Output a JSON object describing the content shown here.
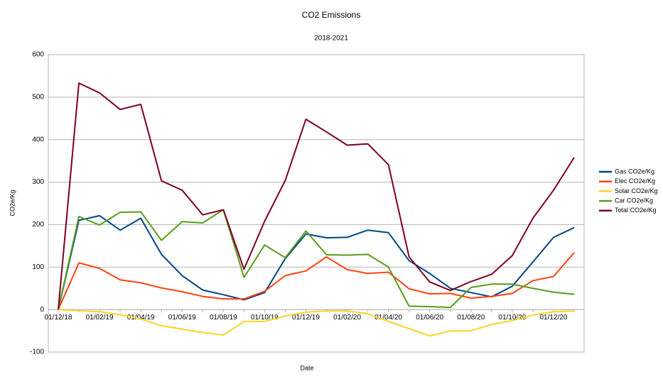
{
  "chart_data": {
    "type": "line",
    "title": "CO2 Emissions",
    "subtitle": "2018-2021",
    "x_label": "Date",
    "y_label": "CO2e/Kg",
    "categories": [
      "01/12/18",
      null,
      "01/02/19",
      null,
      "01/04/19",
      null,
      "01/06/19",
      null,
      "01/08/19",
      null,
      "01/10/19",
      null,
      "01/12/19",
      null,
      "01/02/20",
      null,
      "01/04/20",
      null,
      "01/06/20",
      null,
      "01/08/20",
      null,
      "01/10/20",
      null,
      "01/12/20",
      null
    ],
    "series": [
      {
        "name": "Gas CO2e/Kg",
        "color": "#004586",
        "values": [
          0,
          210,
          221,
          187,
          215,
          130,
          80,
          46,
          35,
          23,
          40,
          120,
          178,
          169,
          170,
          187,
          181,
          115,
          85,
          50,
          40,
          30,
          55,
          112,
          170,
          193
        ]
      },
      {
        "name": "Elec CO2e/Kg",
        "color": "#ff420e",
        "values": [
          0,
          110,
          97,
          70,
          63,
          51,
          42,
          31,
          25,
          25,
          43,
          80,
          91,
          124,
          94,
          85,
          88,
          49,
          37,
          38,
          27,
          31,
          38,
          68,
          78,
          134
        ]
      },
      {
        "name": "Solar CO2e/Kg",
        "color": "#ffd320",
        "values": [
          0,
          -3,
          -5,
          -12,
          -22,
          -38,
          -46,
          -54,
          -60,
          -28,
          -28,
          -15,
          -6,
          -3,
          -3,
          -10,
          -28,
          -45,
          -62,
          -50,
          -50,
          -35,
          -26,
          -13,
          -5,
          -3
        ]
      },
      {
        "name": "Car CO2e/Kg",
        "color": "#579d1c",
        "values": [
          0,
          219,
          199,
          229,
          230,
          163,
          207,
          204,
          235,
          76,
          152,
          122,
          185,
          129,
          128,
          130,
          100,
          8,
          7,
          5,
          52,
          60,
          60,
          50,
          41,
          36
        ]
      },
      {
        "name": "Total CO2e/Kg",
        "color": "#7e0021",
        "values": [
          0,
          533,
          510,
          471,
          483,
          303,
          281,
          223,
          235,
          95,
          208,
          304,
          448,
          418,
          387,
          390,
          341,
          124,
          65,
          45,
          66,
          83,
          127,
          215,
          281,
          358
        ]
      }
    ],
    "ylim": [
      -100,
      600
    ],
    "yticks": [
      -100,
      0,
      100,
      200,
      300,
      400,
      500,
      600
    ],
    "grid": true,
    "legend": "right"
  }
}
